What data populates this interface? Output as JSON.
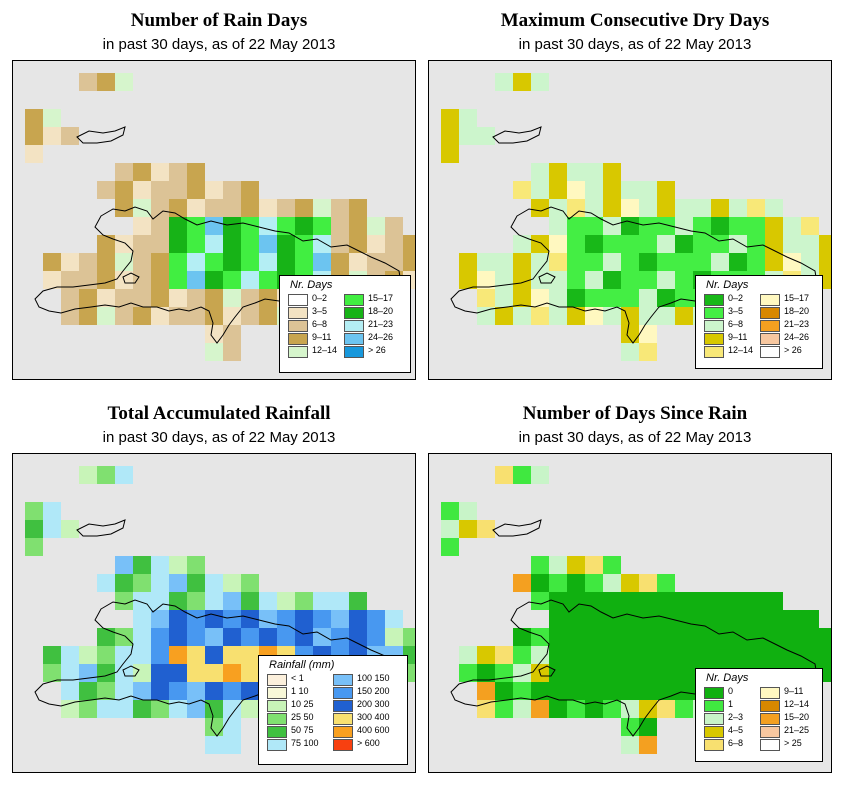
{
  "panels": [
    {
      "title": "Number of Rain Days",
      "subtitle": "in past 30 days, as of  22 May 2013",
      "legend": {
        "title": "Nr. Days",
        "items": [
          {
            "label": "0–2",
            "color": "#ffffff"
          },
          {
            "label": "3–5",
            "color": "#f3e3c3"
          },
          {
            "label": "6–8",
            "color": "#dcc396"
          },
          {
            "label": "9–11",
            "color": "#c8a54f"
          },
          {
            "label": "12–14",
            "color": "#d6f5cc"
          },
          {
            "label": "15–17",
            "color": "#41ee41"
          },
          {
            "label": "18–20",
            "color": "#17b317"
          },
          {
            "label": "21–23",
            "color": "#b4eef4"
          },
          {
            "label": "24–26",
            "color": "#6cc4f0"
          },
          {
            "label": "> 26",
            "color": "#1898dc"
          }
        ]
      }
    },
    {
      "title": "Maximum Consecutive Dry Days",
      "subtitle": "in past 30 days, as of  22 May 2013",
      "legend": {
        "title": "Nr. Days",
        "items": [
          {
            "label": "0–2",
            "color": "#18b818"
          },
          {
            "label": "3–5",
            "color": "#44ee44"
          },
          {
            "label": "6–8",
            "color": "#ccf5cc"
          },
          {
            "label": "9–11",
            "color": "#d8c800"
          },
          {
            "label": "12–14",
            "color": "#f8e878"
          },
          {
            "label": "15–17",
            "color": "#fff8c0"
          },
          {
            "label": "18–20",
            "color": "#d88800"
          },
          {
            "label": "21–23",
            "color": "#f4a020"
          },
          {
            "label": "24–26",
            "color": "#f8c8a0"
          },
          {
            "label": "> 26",
            "color": "#ffffff"
          }
        ]
      }
    },
    {
      "title": "Total Accumulated Rainfall",
      "subtitle": "in past 30 days, as of  22 May 2013",
      "legend": {
        "title": "Rainfall (mm)",
        "items": [
          {
            "label": "< 1",
            "color": "#fcf0dc"
          },
          {
            "label": "1   10",
            "color": "#f8f8d8"
          },
          {
            "label": "10   25",
            "color": "#c8f4b8"
          },
          {
            "label": "25   50",
            "color": "#80e070"
          },
          {
            "label": "50   75",
            "color": "#40c040"
          },
          {
            "label": "75   100",
            "color": "#b0e8f8"
          },
          {
            "label": "100   150",
            "color": "#78c0f8"
          },
          {
            "label": "150   200",
            "color": "#4898f0"
          },
          {
            "label": "200   300",
            "color": "#2060d0"
          },
          {
            "label": "300   400",
            "color": "#f8e070"
          },
          {
            "label": "400   600",
            "color": "#f8a020"
          },
          {
            "label": "> 600",
            "color": "#f84010"
          }
        ]
      }
    },
    {
      "title": "Number of Days Since Rain",
      "subtitle": "in past 30 days, as of  22 May 2013",
      "legend": {
        "title": "Nr. Days",
        "items": [
          {
            "label": "0",
            "color": "#10b010"
          },
          {
            "label": "1",
            "color": "#40e840"
          },
          {
            "label": "2–3",
            "color": "#c8f4c8"
          },
          {
            "label": "4–5",
            "color": "#d8c800"
          },
          {
            "label": "6–8",
            "color": "#f8e070"
          },
          {
            "label": "9–11",
            "color": "#fff8c0"
          },
          {
            "label": "12–14",
            "color": "#d88800"
          },
          {
            "label": "15–20",
            "color": "#f4a020"
          },
          {
            "label": "21–25",
            "color": "#f8c8a0"
          },
          {
            "label": "> 25",
            "color": "#ffffff"
          }
        ]
      }
    }
  ],
  "colors": {
    "background": "#e6e6e6",
    "coastline": "#000000"
  }
}
